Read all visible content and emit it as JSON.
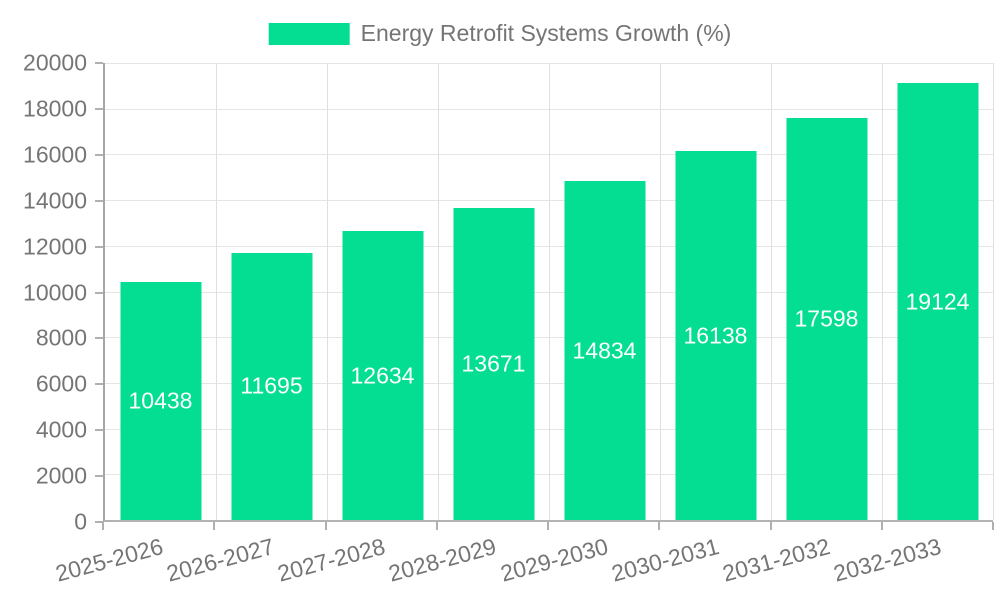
{
  "legend": {
    "label": "Energy Retrofit Systems Growth (%)"
  },
  "chart_data": {
    "type": "bar",
    "title": "",
    "xlabel": "",
    "ylabel": "",
    "series_name": "Energy Retrofit Systems Growth (%)",
    "categories": [
      "2025-2026",
      "2026-2027",
      "2027-2028",
      "2028-2029",
      "2029-2030",
      "2030-2031",
      "2031-2032",
      "2032-2033"
    ],
    "values": [
      10438,
      11695,
      12634,
      13671,
      14834,
      16138,
      17598,
      19124
    ],
    "ylim": [
      0,
      20000
    ],
    "yticks": [
      0,
      2000,
      4000,
      6000,
      8000,
      10000,
      12000,
      14000,
      16000,
      18000,
      20000
    ],
    "grid": true,
    "legend_position": "top",
    "bar_color": "#03de93",
    "value_label_color": "#ffffff",
    "axis_text_color": "#757575",
    "x_label_rotation_deg": -15
  }
}
